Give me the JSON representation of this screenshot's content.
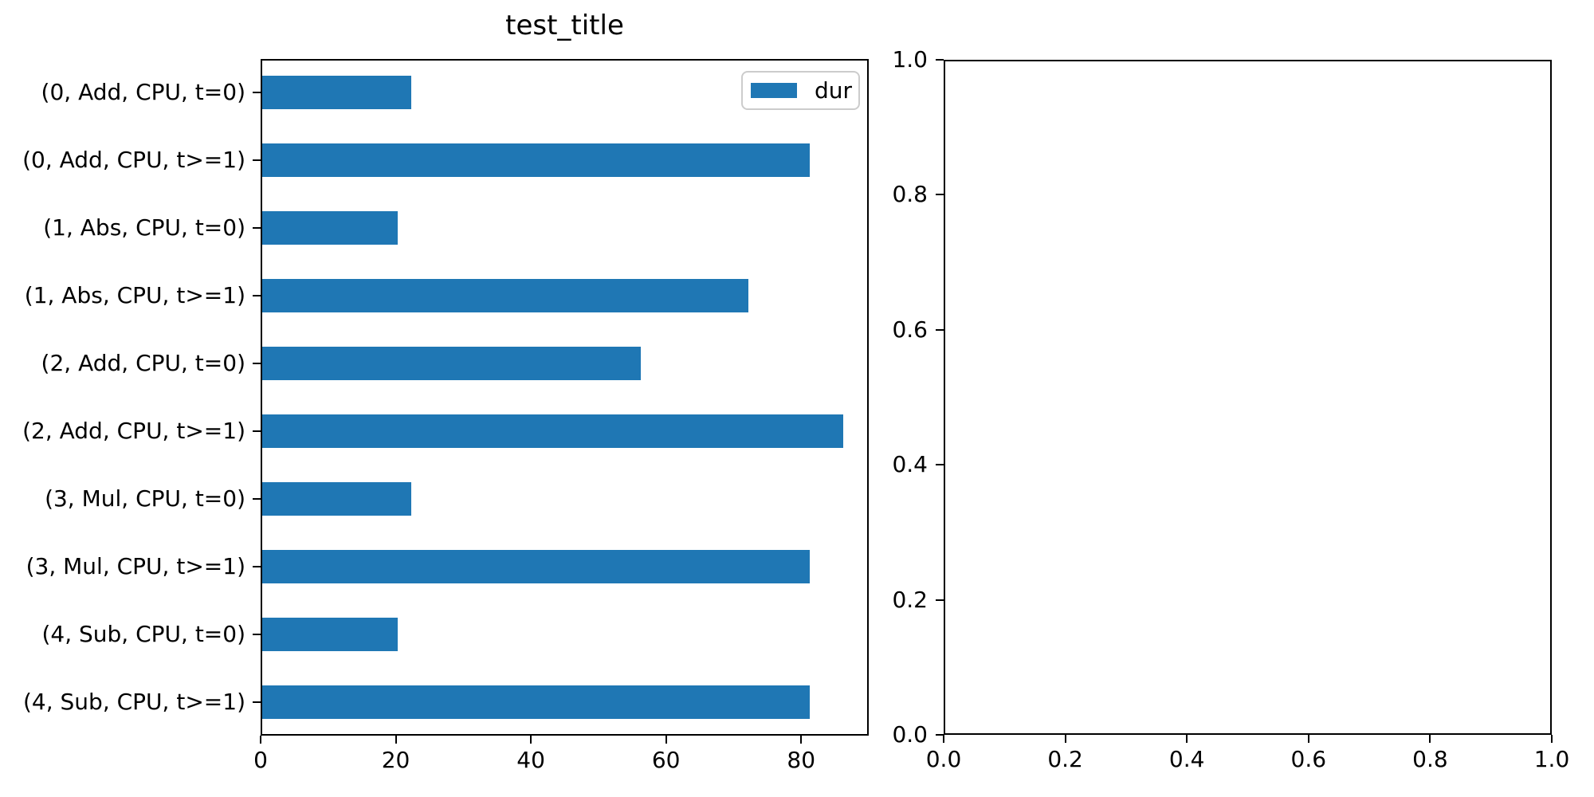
{
  "figure": {
    "background_color": "#ffffff",
    "spine_color": "#000000",
    "legend": {
      "label": "dur",
      "border_color": "#cccccc",
      "position": "upper right"
    }
  },
  "chart_data": [
    {
      "type": "bar",
      "orientation": "horizontal",
      "title": "test_title",
      "categories": [
        "(0, Add, CPU, t=0)",
        "(0, Add, CPU, t>=1)",
        "(1, Abs, CPU, t=0)",
        "(1, Abs, CPU, t>=1)",
        "(2, Add, CPU, t=0)",
        "(2, Add, CPU, t>=1)",
        "(3, Mul, CPU, t=0)",
        "(3, Mul, CPU, t>=1)",
        "(4, Sub, CPU, t=0)",
        "(4, Sub, CPU, t>=1)"
      ],
      "series": [
        {
          "name": "dur",
          "values": [
            22,
            81,
            20,
            72,
            56,
            86,
            22,
            81,
            20,
            81
          ]
        }
      ],
      "bar_color": "#1f77b4",
      "xlabel": "",
      "ylabel": "",
      "xlim": [
        0,
        90
      ],
      "xticks": [
        0,
        20,
        40,
        60,
        80
      ],
      "grid": false,
      "legend_position": "upper right"
    },
    {
      "type": "empty",
      "title": "",
      "xlim": [
        0.0,
        1.0
      ],
      "ylim": [
        0.0,
        1.0
      ],
      "xticks": [
        "0.0",
        "0.2",
        "0.4",
        "0.6",
        "0.8",
        "1.0"
      ],
      "yticks": [
        "0.0",
        "0.2",
        "0.4",
        "0.6",
        "0.8",
        "1.0"
      ],
      "grid": false
    }
  ]
}
